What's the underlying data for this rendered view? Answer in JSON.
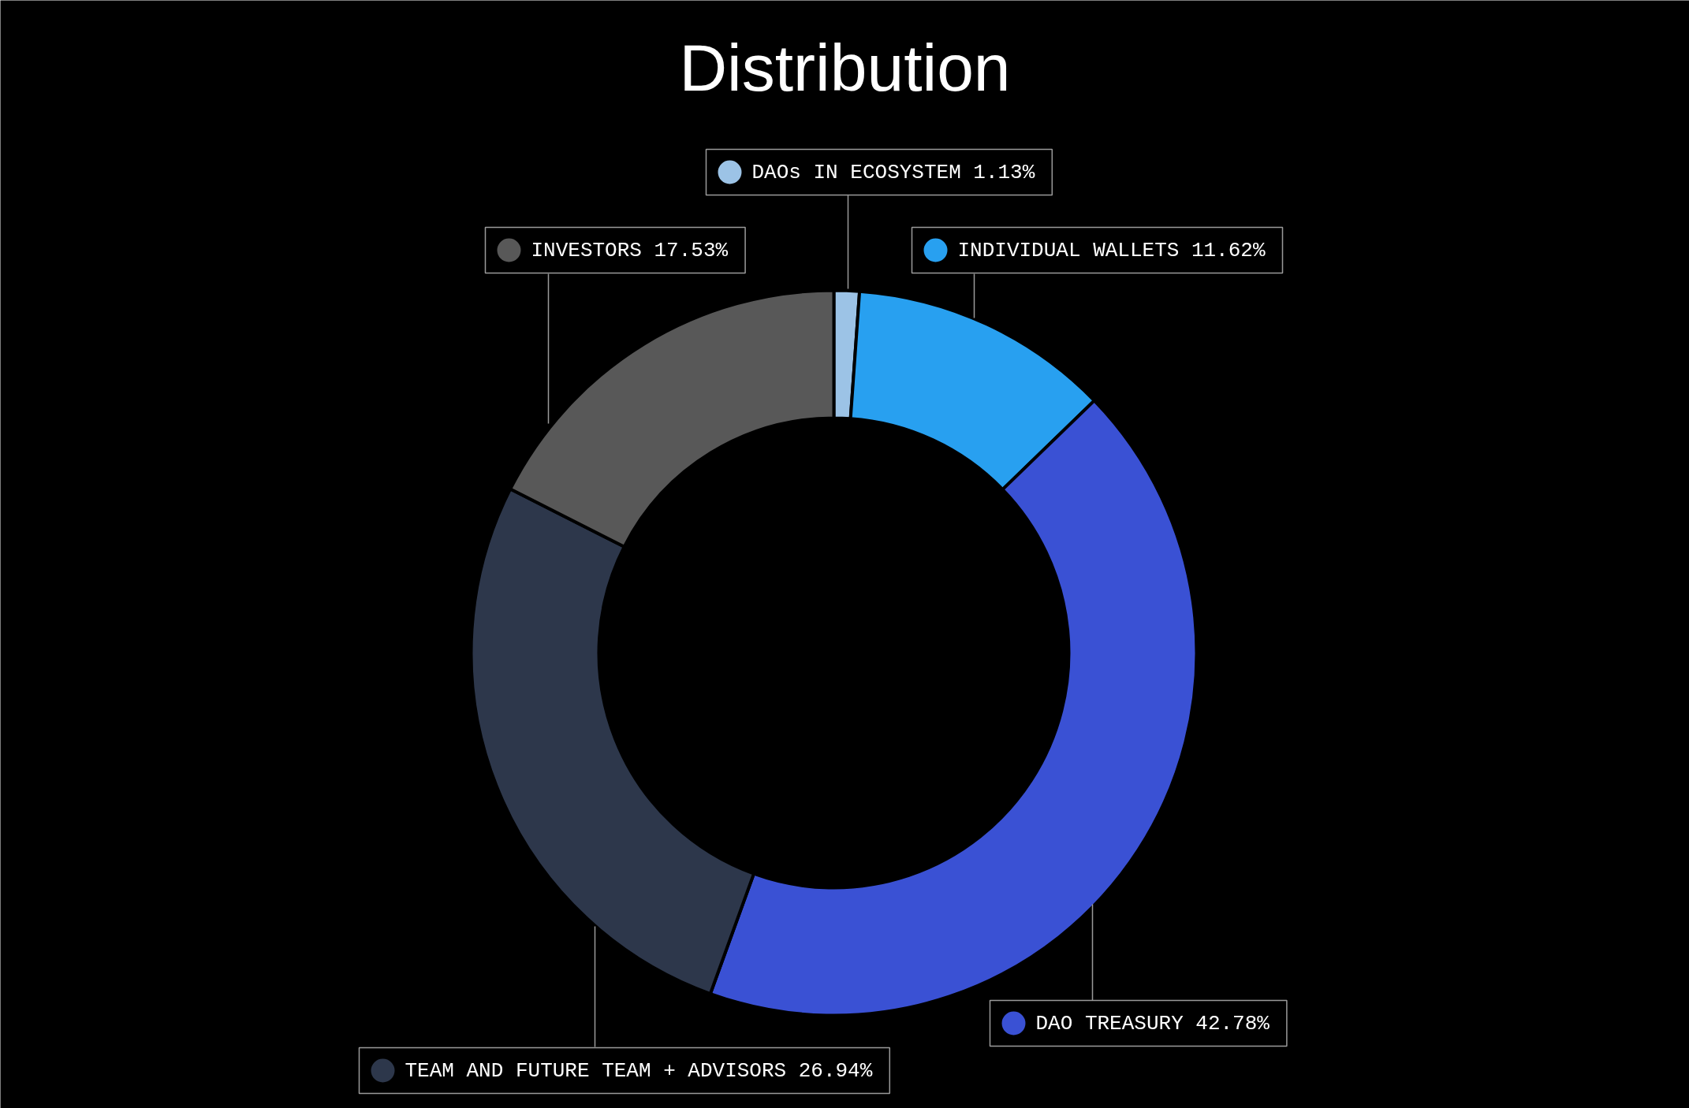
{
  "chart_data": {
    "type": "donut",
    "title": "Distribution",
    "categories": [
      "DAOs IN ECOSYSTEM",
      "INDIVIDUAL WALLETS",
      "DAO TREASURY",
      "TEAM AND FUTURE TEAM + ADVISORS",
      "INVESTORS"
    ],
    "values": [
      1.13,
      11.62,
      42.78,
      26.94,
      17.53
    ],
    "colors": [
      "#9cc3e6",
      "#28a0f0",
      "#3a51d4",
      "#2d374b",
      "#585858"
    ],
    "value_labels": [
      "1.13%",
      "11.62%",
      "42.78%",
      "26.94%",
      "17.53%"
    ],
    "legend": "top"
  }
}
